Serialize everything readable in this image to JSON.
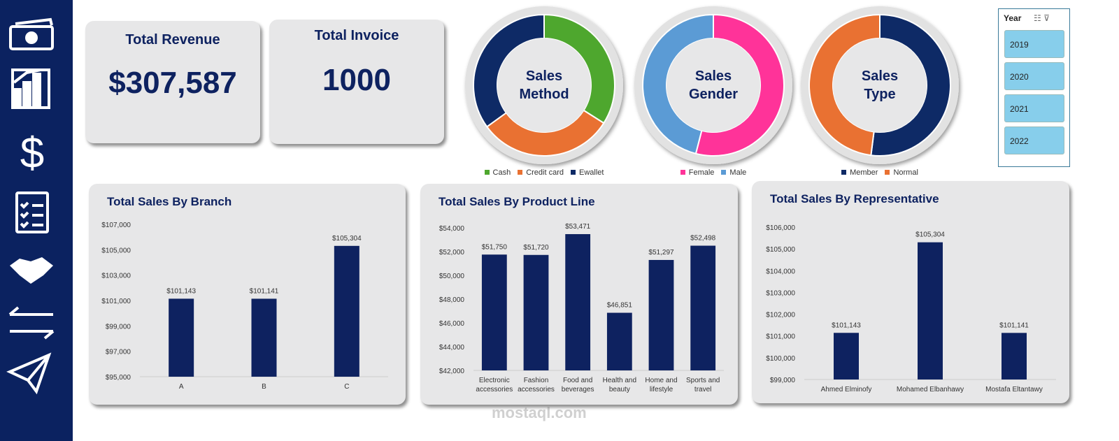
{
  "kpis": [
    {
      "label": "Total Revenue",
      "value": "$307,587"
    },
    {
      "label": "Total Invoice",
      "value": "1000"
    }
  ],
  "slicer": {
    "title": "Year",
    "items": [
      "2019",
      "2020",
      "2021",
      "2022"
    ]
  },
  "watermark": "mostaql.com",
  "chart_data": [
    {
      "type": "donut",
      "title": "Sales Method",
      "categories": [
        "Cash",
        "Credit card",
        "Ewallet"
      ],
      "values": [
        34,
        31,
        35
      ],
      "colors": [
        "#4ea72e",
        "#e97132",
        "#0e2a66"
      ]
    },
    {
      "type": "donut",
      "title": "Sales Gender",
      "categories": [
        "Female",
        "Male"
      ],
      "values": [
        54,
        46
      ],
      "colors": [
        "#ff3399",
        "#5b9bd5"
      ]
    },
    {
      "type": "donut",
      "title": "Sales Type",
      "categories": [
        "Member",
        "Normal"
      ],
      "values": [
        52,
        48
      ],
      "colors": [
        "#0e2a66",
        "#e97132"
      ]
    },
    {
      "type": "bar",
      "title": "Total Sales By Branch",
      "categories": [
        "A",
        "B",
        "C"
      ],
      "values": [
        101143,
        101141,
        105304
      ],
      "value_labels": [
        "$101,143",
        "$101,141",
        "$105,304"
      ],
      "color": "#0e2260",
      "ylim": [
        95000,
        107000
      ],
      "yticks": [
        {
          "value": 95000,
          "label": "$95,000"
        },
        {
          "value": 97000,
          "label": "$97,000"
        },
        {
          "value": 99000,
          "label": "$99,000"
        },
        {
          "value": 101000,
          "label": "$101,000"
        },
        {
          "value": 103000,
          "label": "$103,000"
        },
        {
          "value": 105000,
          "label": "$105,000"
        },
        {
          "value": 107000,
          "label": "$107,000"
        }
      ]
    },
    {
      "type": "bar",
      "title": "Total Sales By Product Line",
      "categories": [
        "Electronic accessories",
        "Fashion accessories",
        "Food and beverages",
        "Health and beauty",
        "Home and lifestyle",
        "Sports and travel"
      ],
      "values": [
        51750,
        51720,
        53471,
        46851,
        51297,
        52498
      ],
      "value_labels": [
        "$51,750",
        "$51,720",
        "$53,471",
        "$46,851",
        "$51,297",
        "$52,498"
      ],
      "color": "#0e2260",
      "ylim": [
        42000,
        54000
      ],
      "yticks": [
        {
          "value": 42000,
          "label": "$42,000"
        },
        {
          "value": 44000,
          "label": "$44,000"
        },
        {
          "value": 46000,
          "label": "$46,000"
        },
        {
          "value": 48000,
          "label": "$48,000"
        },
        {
          "value": 50000,
          "label": "$50,000"
        },
        {
          "value": 52000,
          "label": "$52,000"
        },
        {
          "value": 54000,
          "label": "$54,000"
        }
      ]
    },
    {
      "type": "bar",
      "title": "Total Sales By Representative",
      "categories": [
        "Ahmed Elminofy",
        "Mohamed Elbanhawy",
        "Mostafa Eltantawy"
      ],
      "values": [
        101143,
        105304,
        101141
      ],
      "value_labels": [
        "$101,143",
        "$105,304",
        "$101,141"
      ],
      "color": "#0e2260",
      "ylim": [
        99000,
        106000
      ],
      "yticks": [
        {
          "value": 99000,
          "label": "$99,000"
        },
        {
          "value": 100000,
          "label": "$100,000"
        },
        {
          "value": 101000,
          "label": "$101,000"
        },
        {
          "value": 102000,
          "label": "$102,000"
        },
        {
          "value": 103000,
          "label": "$103,000"
        },
        {
          "value": 104000,
          "label": "$104,000"
        },
        {
          "value": 105000,
          "label": "$105,000"
        },
        {
          "value": 106000,
          "label": "$106,000"
        }
      ]
    }
  ]
}
